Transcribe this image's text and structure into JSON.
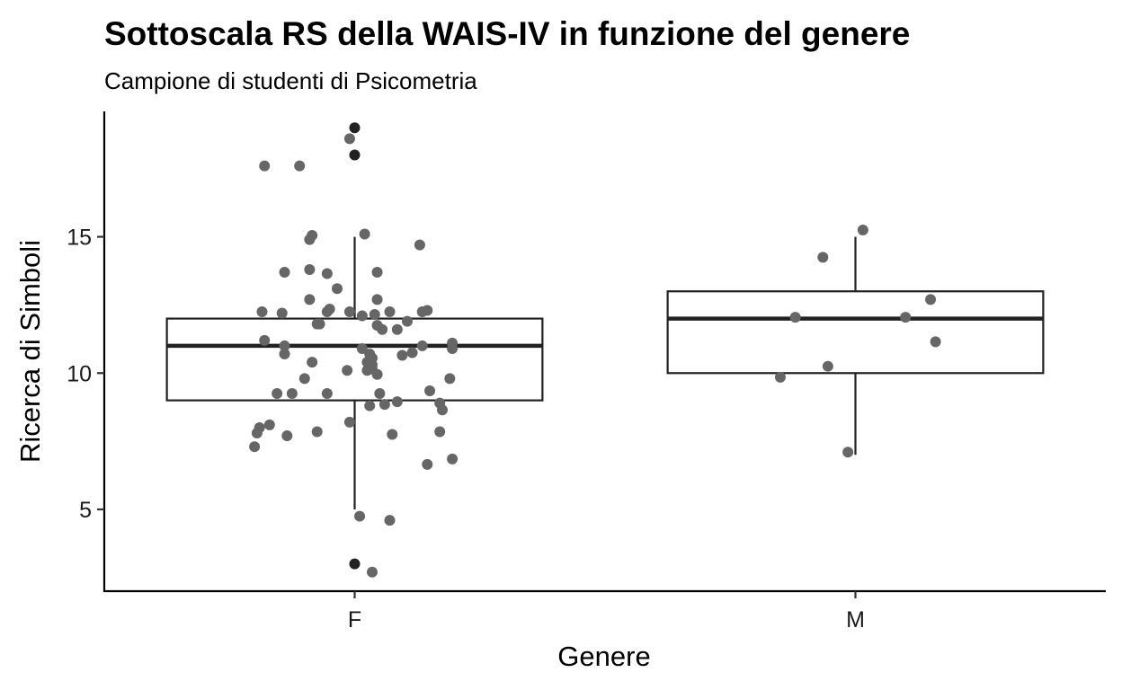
{
  "chart_data": {
    "type": "boxplot",
    "title": "Sottoscala RS della WAIS-IV in funzione del genere",
    "subtitle": "Campione di studenti di Psicometria",
    "xlabel": "Genere",
    "ylabel": "Ricerca di Simboli",
    "categories": [
      "F",
      "M"
    ],
    "ylim": [
      2,
      19.6
    ],
    "yticks": [
      5,
      10,
      15
    ],
    "grid": false,
    "colors": {
      "box_line": "#222222",
      "box_fill": "#ffffff",
      "jitter_point": "#666666",
      "outlier_point": "#222222"
    },
    "boxes": [
      {
        "category": "F",
        "whisker_low": 5,
        "q1": 9,
        "median": 11,
        "q3": 12,
        "whisker_high": 15,
        "outliers": [
          19,
          18,
          3
        ]
      },
      {
        "category": "M",
        "whisker_low": 7,
        "q1": 10,
        "median": 12,
        "q3": 13,
        "whisker_high": 15,
        "outliers": []
      }
    ],
    "points": [
      {
        "x": -0.18,
        "y": 17.6
      },
      {
        "x": -0.11,
        "y": 17.6
      },
      {
        "x": -0.01,
        "y": 18.6
      },
      {
        "x": -0.09,
        "y": 14.9
      },
      {
        "x": -0.085,
        "y": 15.05
      },
      {
        "x": 0.02,
        "y": 15.1
      },
      {
        "x": 0.13,
        "y": 14.7
      },
      {
        "x": -0.14,
        "y": 13.7
      },
      {
        "x": -0.09,
        "y": 13.8
      },
      {
        "x": -0.055,
        "y": 13.65
      },
      {
        "x": 0.045,
        "y": 13.7
      },
      {
        "x": -0.035,
        "y": 13.1
      },
      {
        "x": -0.09,
        "y": 12.7
      },
      {
        "x": 0.045,
        "y": 12.7
      },
      {
        "x": -0.185,
        "y": 12.25
      },
      {
        "x": -0.145,
        "y": 12.2
      },
      {
        "x": -0.055,
        "y": 12.25
      },
      {
        "x": -0.05,
        "y": 12.35
      },
      {
        "x": -0.01,
        "y": 12.25
      },
      {
        "x": 0.015,
        "y": 12.1
      },
      {
        "x": 0.04,
        "y": 12.15
      },
      {
        "x": 0.07,
        "y": 12.25
      },
      {
        "x": 0.135,
        "y": 12.25
      },
      {
        "x": 0.145,
        "y": 12.3
      },
      {
        "x": -0.07,
        "y": 11.8
      },
      {
        "x": -0.075,
        "y": 11.8
      },
      {
        "x": 0.045,
        "y": 11.75
      },
      {
        "x": 0.055,
        "y": 11.6
      },
      {
        "x": 0.085,
        "y": 11.6
      },
      {
        "x": 0.105,
        "y": 11.9
      },
      {
        "x": -0.18,
        "y": 11.2
      },
      {
        "x": -0.14,
        "y": 11.0
      },
      {
        "x": -0.14,
        "y": 10.7
      },
      {
        "x": 0.015,
        "y": 10.9
      },
      {
        "x": 0.03,
        "y": 10.7
      },
      {
        "x": 0.035,
        "y": 10.55
      },
      {
        "x": 0.095,
        "y": 10.65
      },
      {
        "x": 0.115,
        "y": 10.75
      },
      {
        "x": 0.135,
        "y": 11.0
      },
      {
        "x": 0.195,
        "y": 11.1
      },
      {
        "x": 0.195,
        "y": 10.9
      },
      {
        "x": -0.085,
        "y": 10.4
      },
      {
        "x": 0.025,
        "y": 10.4
      },
      {
        "x": 0.035,
        "y": 10.3
      },
      {
        "x": 0.025,
        "y": 10.1
      },
      {
        "x": 0.035,
        "y": 10.15
      },
      {
        "x": -0.015,
        "y": 10.1
      },
      {
        "x": 0.045,
        "y": 9.95
      },
      {
        "x": 0.19,
        "y": 9.8
      },
      {
        "x": -0.1,
        "y": 9.8
      },
      {
        "x": -0.155,
        "y": 9.25
      },
      {
        "x": -0.125,
        "y": 9.25
      },
      {
        "x": -0.055,
        "y": 9.25
      },
      {
        "x": 0.05,
        "y": 9.25
      },
      {
        "x": 0.15,
        "y": 9.35
      },
      {
        "x": 0.085,
        "y": 8.95
      },
      {
        "x": 0.06,
        "y": 8.85
      },
      {
        "x": 0.03,
        "y": 8.8
      },
      {
        "x": 0.17,
        "y": 8.9
      },
      {
        "x": 0.175,
        "y": 8.65
      },
      {
        "x": -0.01,
        "y": 8.2
      },
      {
        "x": -0.17,
        "y": 8.1
      },
      {
        "x": -0.19,
        "y": 8.0
      },
      {
        "x": -0.195,
        "y": 7.8
      },
      {
        "x": -0.135,
        "y": 7.7
      },
      {
        "x": -0.075,
        "y": 7.85
      },
      {
        "x": 0.075,
        "y": 7.75
      },
      {
        "x": 0.17,
        "y": 7.85
      },
      {
        "x": -0.2,
        "y": 7.3
      },
      {
        "x": 0.145,
        "y": 6.65
      },
      {
        "x": 0.195,
        "y": 6.85
      },
      {
        "x": 0.01,
        "y": 4.75
      },
      {
        "x": 0.07,
        "y": 4.6
      },
      {
        "x": 0.035,
        "y": 2.7
      },
      {
        "x": 1.015,
        "y": 15.25
      },
      {
        "x": 0.935,
        "y": 14.25
      },
      {
        "x": 1.15,
        "y": 12.7
      },
      {
        "x": 0.88,
        "y": 12.05
      },
      {
        "x": 1.1,
        "y": 12.05
      },
      {
        "x": 1.16,
        "y": 11.15
      },
      {
        "x": 0.945,
        "y": 10.25
      },
      {
        "x": 0.85,
        "y": 9.85
      },
      {
        "x": 0.985,
        "y": 7.1
      }
    ]
  }
}
